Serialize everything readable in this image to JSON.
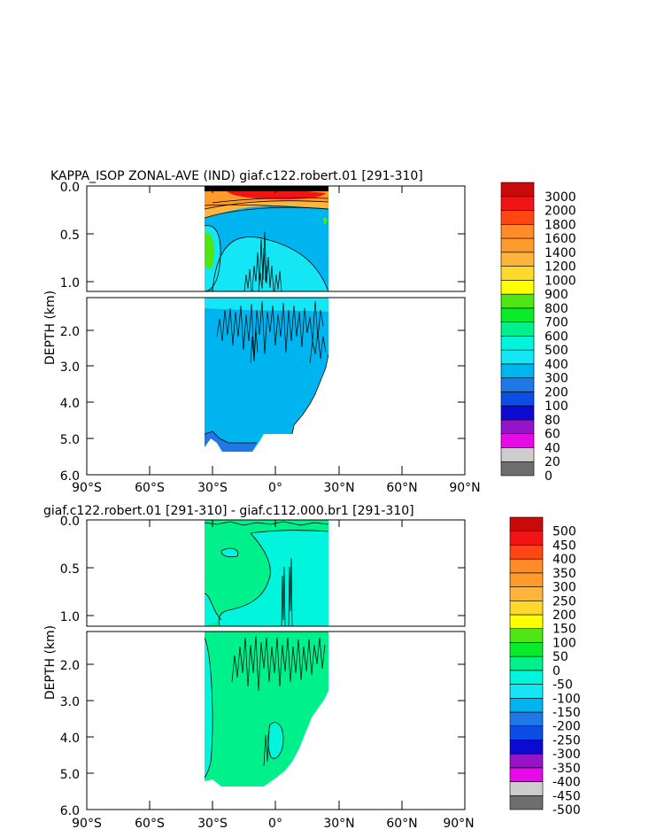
{
  "chart_data": [
    {
      "type": "heatmap",
      "title": "KAPPA_ISOP ZONAL-AVE (IND) giaf.c122.robert.01 [291-310]",
      "ylabel": "DEPTH (km)",
      "xticks": [
        "90°S",
        "60°S",
        "30°S",
        "0°",
        "30°N",
        "60°N",
        "90°N"
      ],
      "upper_yticks": [
        "0.0",
        "0.5",
        "1.0"
      ],
      "lower_yticks": [
        "2.0",
        "3.0",
        "4.0",
        "5.0",
        "6.0"
      ],
      "x_range_deg": [
        -90,
        90
      ],
      "upper_depth_range_km": [
        0,
        1.1
      ],
      "lower_depth_range_km": [
        1.1,
        6.0
      ],
      "colorbar_levels": [
        "0",
        "20",
        "40",
        "60",
        "80",
        "100",
        "200",
        "300",
        "400",
        "500",
        "600",
        "700",
        "800",
        "900",
        "1000",
        "1200",
        "1400",
        "1600",
        "1800",
        "2000",
        "3000"
      ],
      "colorbar_colors": [
        "#6e6e6e",
        "#cdcdcd",
        "#e60ae6",
        "#9614c8",
        "#0a0ad2",
        "#0a4ee6",
        "#1e78e6",
        "#00b4f0",
        "#14e6f5",
        "#00f5dc",
        "#00f08c",
        "#0aeb2a",
        "#50e614",
        "#ffff00",
        "#ffd82d",
        "#ffb43c",
        "#ff9b2d",
        "#ff8c28",
        "#ff4614",
        "#f01414",
        "#c80a0a"
      ]
    },
    {
      "type": "heatmap",
      "title": "giaf.c122.robert.01 [291-310] - giaf.c112.000.br1 [291-310]",
      "ylabel": "DEPTH (km)",
      "xticks": [
        "90°S",
        "60°S",
        "30°S",
        "0°",
        "30°N",
        "60°N",
        "90°N"
      ],
      "upper_yticks": [
        "0.0",
        "0.5",
        "1.0"
      ],
      "lower_yticks": [
        "2.0",
        "3.0",
        "4.0",
        "5.0",
        "6.0"
      ],
      "x_range_deg": [
        -90,
        90
      ],
      "upper_depth_range_km": [
        0,
        1.1
      ],
      "lower_depth_range_km": [
        1.1,
        6.0
      ],
      "colorbar_levels": [
        "-500",
        "-450",
        "-400",
        "-350",
        "-300",
        "-250",
        "-200",
        "-150",
        "-100",
        "-50",
        "0",
        "50",
        "100",
        "150",
        "200",
        "250",
        "300",
        "350",
        "400",
        "450",
        "500"
      ],
      "colorbar_colors": [
        "#6e6e6e",
        "#cdcdcd",
        "#e60ae6",
        "#9614c8",
        "#0a0ad2",
        "#0a4ee6",
        "#1e78e6",
        "#00b4f0",
        "#14e6f5",
        "#00f5dc",
        "#00f08c",
        "#0aeb2a",
        "#50e614",
        "#ffff00",
        "#ffd82d",
        "#ffb43c",
        "#ff9b2d",
        "#ff8c28",
        "#ff4614",
        "#f01414",
        "#c80a0a"
      ]
    }
  ]
}
